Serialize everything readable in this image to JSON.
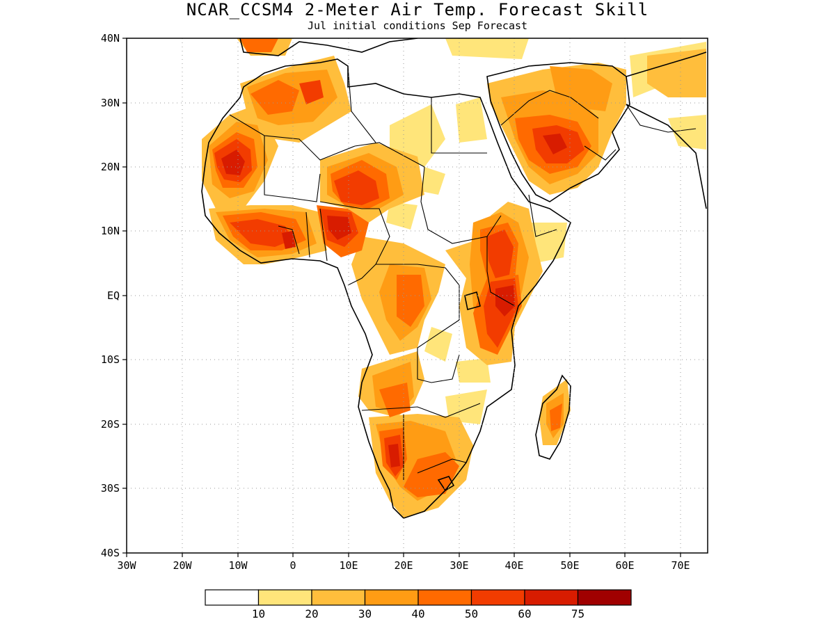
{
  "map": {
    "title": "NCAR_CCSM4 2-Meter Air Temp. Forecast Skill",
    "subtitle": "Jul initial conditions  Sep Forecast",
    "lon_labels": [
      "30W",
      "20W",
      "10W",
      "0",
      "10E",
      "20E",
      "30E",
      "40E",
      "50E",
      "60E",
      "70E"
    ],
    "lat_labels": [
      "40N",
      "30N",
      "20N",
      "10N",
      "EQ",
      "10S",
      "20S",
      "30S",
      "40S"
    ],
    "region": "Africa",
    "lon_range": [
      -30,
      75
    ],
    "lat_range": [
      -40,
      40
    ],
    "grid": "dotted"
  },
  "legend": {
    "colors": [
      "#ffffff",
      "#ffe57a",
      "#ffbe3c",
      "#ff9c14",
      "#ff6a00",
      "#f23c00",
      "#d81c00",
      "#a00000"
    ],
    "labels": [
      "10",
      "20",
      "30",
      "40",
      "50",
      "60",
      "75"
    ]
  }
}
